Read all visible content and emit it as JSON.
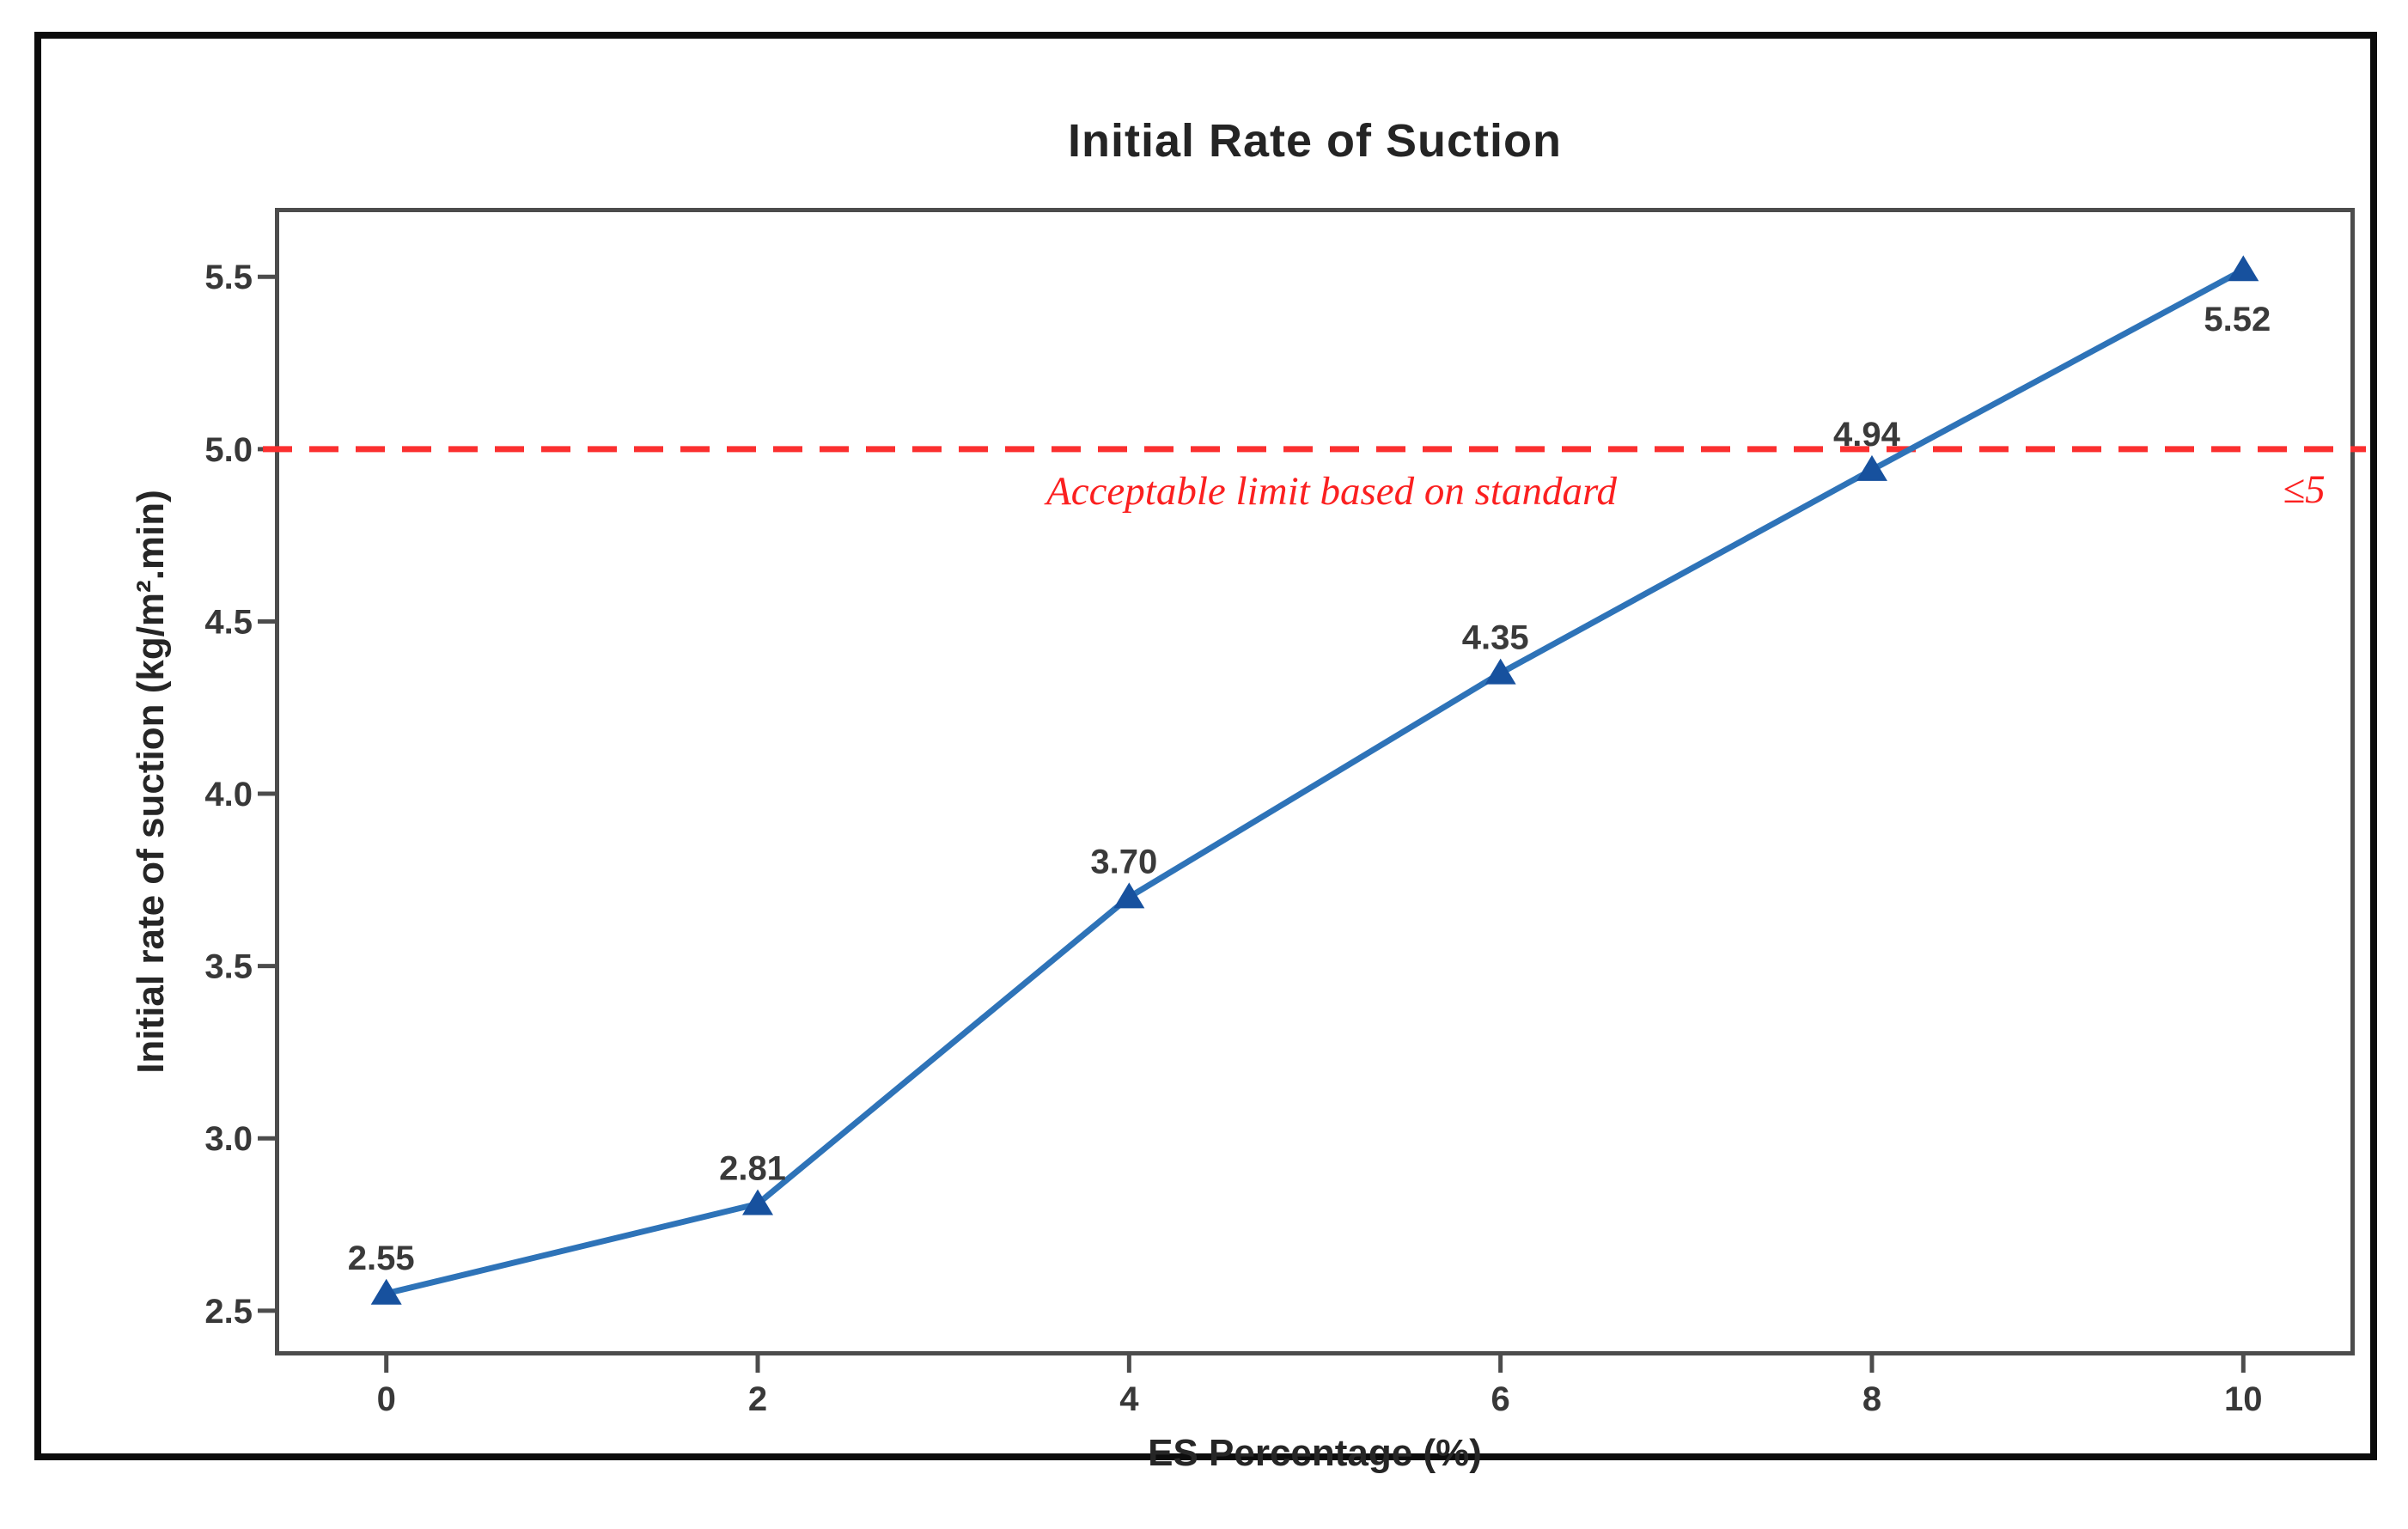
{
  "colors": {
    "series_line": "#2e73b8",
    "series_marker": "#17519e",
    "limit_line": "#fb2f2f",
    "axis": "#4c4c4c",
    "frame": "#0c0c0c"
  },
  "chart_data": {
    "type": "line",
    "title": "Initial Rate of Suction",
    "xlabel": "ES Percentage (%)",
    "ylabel": "Initial rate of suction (kg/m².min)",
    "x": [
      0,
      2,
      4,
      6,
      8,
      10
    ],
    "y": [
      2.55,
      2.81,
      3.7,
      4.35,
      4.94,
      5.52
    ],
    "point_labels": [
      "2.55",
      "2.81",
      "3.70",
      "4.35",
      "4.94",
      "5.52"
    ],
    "label_positions": [
      "above",
      "above",
      "above",
      "above",
      "above",
      "below"
    ],
    "marker": "triangle-up",
    "x_ticks": [
      0,
      2,
      4,
      6,
      8,
      10
    ],
    "x_tick_labels": [
      "0",
      "2",
      "4",
      "6",
      "8",
      "10"
    ],
    "y_ticks": [
      2.5,
      3.0,
      3.5,
      4.0,
      4.5,
      5.0,
      5.5
    ],
    "y_tick_labels": [
      "2.5",
      "3.0",
      "3.5",
      "4.0",
      "4.5",
      "5.0",
      "5.5"
    ],
    "xlim": [
      -0.6,
      10.6
    ],
    "ylim": [
      2.37,
      5.7
    ],
    "grid": false,
    "legend": null,
    "reference_line": {
      "y": 5.0,
      "style": "dashed",
      "label": "Acceptable limit based on standard",
      "value_label": "≤5"
    }
  }
}
